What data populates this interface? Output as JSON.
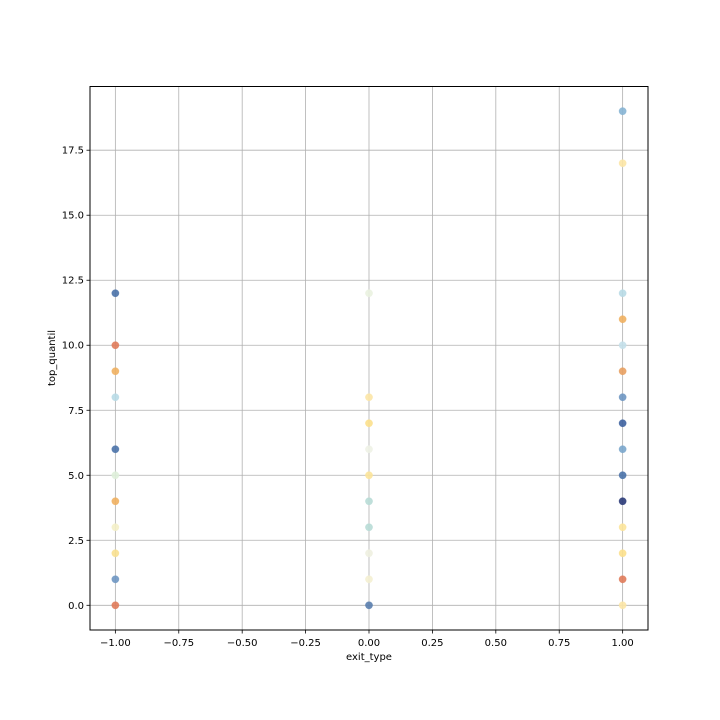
{
  "chart_data": {
    "type": "scatter",
    "title": "",
    "xlabel": "exit_type",
    "ylabel": "top_quantil",
    "xlim": [
      -1.1,
      1.1
    ],
    "ylim": [
      -0.95,
      19.95
    ],
    "xticks": [
      -1.0,
      -0.75,
      -0.5,
      -0.25,
      0.0,
      0.25,
      0.5,
      0.75,
      1.0
    ],
    "xtick_labels": [
      "−1.00",
      "−0.75",
      "−0.50",
      "−0.25",
      "0.00",
      "0.25",
      "0.50",
      "0.75",
      "1.00"
    ],
    "yticks": [
      0.0,
      2.5,
      5.0,
      7.5,
      10.0,
      12.5,
      15.0,
      17.5
    ],
    "ytick_labels": [
      "0.0",
      "2.5",
      "5.0",
      "7.5",
      "10.0",
      "12.5",
      "15.0",
      "17.5"
    ],
    "grid": true,
    "legend": "none",
    "points": [
      {
        "x": -1,
        "y": 12,
        "color": "#4a72a8"
      },
      {
        "x": -1,
        "y": 10,
        "color": "#e07b5a"
      },
      {
        "x": -1,
        "y": 9,
        "color": "#f0b060"
      },
      {
        "x": -1,
        "y": 8,
        "color": "#b8dae6"
      },
      {
        "x": -1,
        "y": 6,
        "color": "#4a72a8"
      },
      {
        "x": -1,
        "y": 5,
        "color": "#dff0da"
      },
      {
        "x": -1,
        "y": 4,
        "color": "#f0b060"
      },
      {
        "x": -1,
        "y": 3,
        "color": "#f4f0c8"
      },
      {
        "x": -1,
        "y": 2,
        "color": "#f8e090"
      },
      {
        "x": -1,
        "y": 1,
        "color": "#6e96c2"
      },
      {
        "x": -1,
        "y": 0,
        "color": "#e07b5a"
      },
      {
        "x": 0,
        "y": 12,
        "color": "#eaf2e0"
      },
      {
        "x": 0,
        "y": 8,
        "color": "#fce6a6"
      },
      {
        "x": 0,
        "y": 7,
        "color": "#fce08c"
      },
      {
        "x": 0,
        "y": 6,
        "color": "#eef2e6"
      },
      {
        "x": 0,
        "y": 5,
        "color": "#fce49a"
      },
      {
        "x": 0,
        "y": 4,
        "color": "#b8dcd6"
      },
      {
        "x": 0,
        "y": 3,
        "color": "#b8dcd6"
      },
      {
        "x": 0,
        "y": 2,
        "color": "#eef0e0"
      },
      {
        "x": 0,
        "y": 1,
        "color": "#f4f0d2"
      },
      {
        "x": 0,
        "y": 0,
        "color": "#5a7eae"
      },
      {
        "x": 1,
        "y": 19,
        "color": "#86b4d4"
      },
      {
        "x": 1,
        "y": 17,
        "color": "#fce6a6"
      },
      {
        "x": 1,
        "y": 12,
        "color": "#b8dae6"
      },
      {
        "x": 1,
        "y": 11,
        "color": "#f0b060"
      },
      {
        "x": 1,
        "y": 10,
        "color": "#c4e0ea"
      },
      {
        "x": 1,
        "y": 9,
        "color": "#e8a060"
      },
      {
        "x": 1,
        "y": 8,
        "color": "#6e96c2"
      },
      {
        "x": 1,
        "y": 7,
        "color": "#3e62a0"
      },
      {
        "x": 1,
        "y": 6,
        "color": "#7aa6cc"
      },
      {
        "x": 1,
        "y": 5,
        "color": "#4a72a8"
      },
      {
        "x": 1,
        "y": 4,
        "color": "#2a3a78"
      },
      {
        "x": 1,
        "y": 3,
        "color": "#fce49a"
      },
      {
        "x": 1,
        "y": 2,
        "color": "#fce08c"
      },
      {
        "x": 1,
        "y": 1,
        "color": "#e07b5a"
      },
      {
        "x": 1,
        "y": 0,
        "color": "#fce6a6"
      }
    ]
  },
  "colors": {
    "grid": "#b0b0b0",
    "axes": "#000000",
    "background": "#ffffff"
  }
}
